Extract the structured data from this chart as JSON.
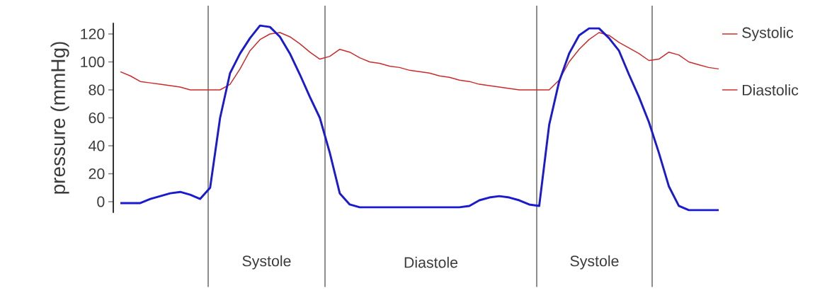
{
  "chart_data": {
    "type": "line",
    "ylabel": "pressure (mmHg)",
    "categories": [
      null,
      null,
      null,
      null,
      null,
      null,
      null,
      null,
      null,
      null,
      null,
      null,
      null,
      null,
      null,
      null,
      null,
      null,
      null,
      null,
      null,
      null,
      null,
      null,
      null,
      null,
      null,
      null,
      null,
      null,
      null,
      null,
      null,
      null,
      null,
      null,
      null,
      null,
      null,
      null,
      null,
      null,
      null,
      null,
      null,
      null,
      null,
      null,
      null,
      null,
      null,
      null,
      null,
      null,
      null,
      null,
      null,
      null,
      null,
      null,
      null
    ],
    "series": [
      {
        "color": "#cc2a2a",
        "values": [
          93,
          90,
          86,
          85,
          84,
          83,
          82,
          80,
          80,
          80,
          80,
          84,
          95,
          108,
          116,
          120,
          121,
          118,
          113,
          107,
          102,
          104,
          109,
          107,
          103,
          100,
          99,
          97,
          96,
          94,
          93,
          92,
          90,
          89,
          87,
          86,
          84,
          83,
          82,
          81,
          80,
          80,
          80,
          80,
          87,
          100,
          109,
          116,
          121,
          119,
          114,
          110,
          106,
          101,
          102,
          107,
          105,
          100,
          98,
          96,
          95
        ]
      },
      {
        "color": "#1a1ad0",
        "values": [
          -1,
          -1,
          -1,
          2,
          4,
          6,
          7,
          5,
          2,
          10,
          60,
          92,
          106,
          117,
          126,
          125,
          118,
          106,
          91,
          75,
          60,
          35,
          6,
          -2,
          -4,
          -4,
          -4,
          -4,
          -4,
          -4,
          -4,
          -4,
          -4,
          -4,
          -4,
          -3,
          1,
          3,
          4,
          3,
          1,
          -2,
          -3,
          55,
          86,
          106,
          119,
          124,
          124,
          117,
          108,
          91,
          75,
          57,
          35,
          11,
          -3,
          -6,
          -6,
          -6,
          -6
        ]
      }
    ],
    "ylim": [
      -8,
      128
    ],
    "yticks": [
      0,
      20,
      40,
      60,
      80,
      100,
      120
    ],
    "annotations": [
      "Systole",
      "Diastole",
      "Systole"
    ],
    "ref_lines": [
      {
        "axis": "y",
        "value": 120,
        "label": "Systolic",
        "color": "#cc2a2a"
      },
      {
        "axis": "y",
        "value": 80,
        "label": "Diastolic",
        "color": "#cc2a2a"
      }
    ]
  }
}
